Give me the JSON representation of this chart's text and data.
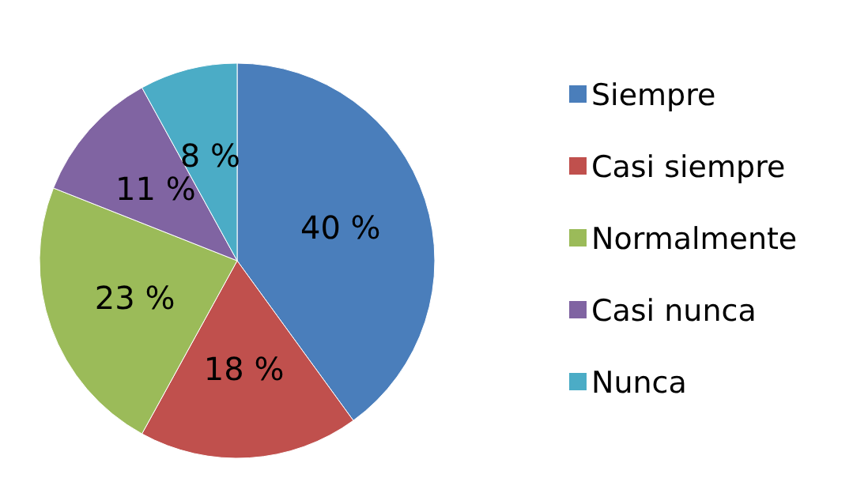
{
  "chart_data": {
    "type": "pie",
    "categories": [
      "Siempre",
      "Casi siempre",
      "Normalmente",
      "Casi nunca",
      "Nunca"
    ],
    "values": [
      40,
      18,
      23,
      11,
      8
    ],
    "colors": [
      "#4a7ebb",
      "#c0504d",
      "#9bbb59",
      "#8064a2",
      "#4bacc6"
    ],
    "value_labels": [
      "40 %",
      "18 %",
      "23 %",
      "11 %",
      "8 %"
    ],
    "legend": "right"
  }
}
